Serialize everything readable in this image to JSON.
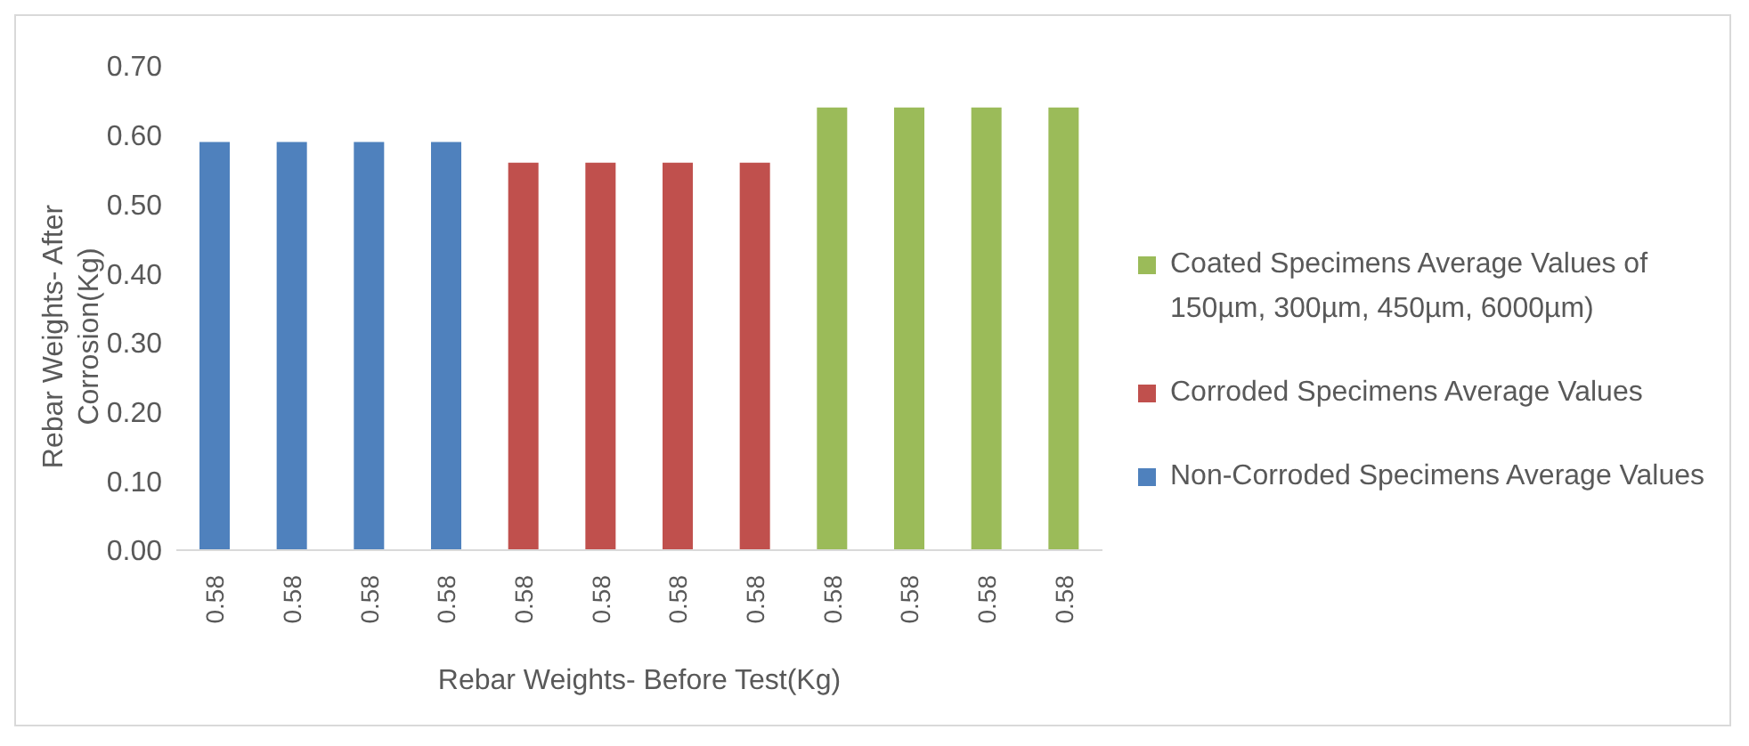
{
  "chart_data": {
    "type": "bar",
    "stacked": true,
    "xlabel": "Rebar Weights- Before Test(Kg)",
    "ylabel": "Rebar Weights- After Corrosion(Kg)",
    "categories": [
      "0.58",
      "0.58",
      "0.58",
      "0.58",
      "0.58",
      "0.58",
      "0.58",
      "0.58",
      "0.58",
      "0.58",
      "0.58",
      "0.58"
    ],
    "series": [
      {
        "name": "Coated Specimens Average Values of 150µm, 300µm, 450µm, 6000µm)",
        "color": "#9bbb59",
        "values": [
          null,
          null,
          null,
          null,
          null,
          null,
          null,
          null,
          0.64,
          0.64,
          0.64,
          0.64
        ]
      },
      {
        "name": "Corroded Specimens Average Values",
        "color": "#c0504d",
        "values": [
          null,
          null,
          null,
          null,
          0.56,
          0.56,
          0.56,
          0.56,
          null,
          null,
          null,
          null
        ]
      },
      {
        "name": "Non-Corroded Specimens Average Values",
        "color": "#4f81bd",
        "values": [
          0.59,
          0.59,
          0.59,
          0.59,
          null,
          null,
          null,
          null,
          null,
          null,
          null,
          null
        ]
      }
    ],
    "ylim": [
      0,
      0.7
    ],
    "yticks": [
      {
        "value": 0,
        "label": "0.00"
      },
      {
        "value": 0.1,
        "label": "0.10"
      },
      {
        "value": 0.2,
        "label": "0.20"
      },
      {
        "value": 0.3,
        "label": "0.30"
      },
      {
        "value": 0.4,
        "label": "0.40"
      },
      {
        "value": 0.5,
        "label": "0.50"
      },
      {
        "value": 0.6,
        "label": "0.60"
      },
      {
        "value": 0.7,
        "label": "0.70"
      }
    ],
    "grid": false,
    "legend": "right"
  }
}
